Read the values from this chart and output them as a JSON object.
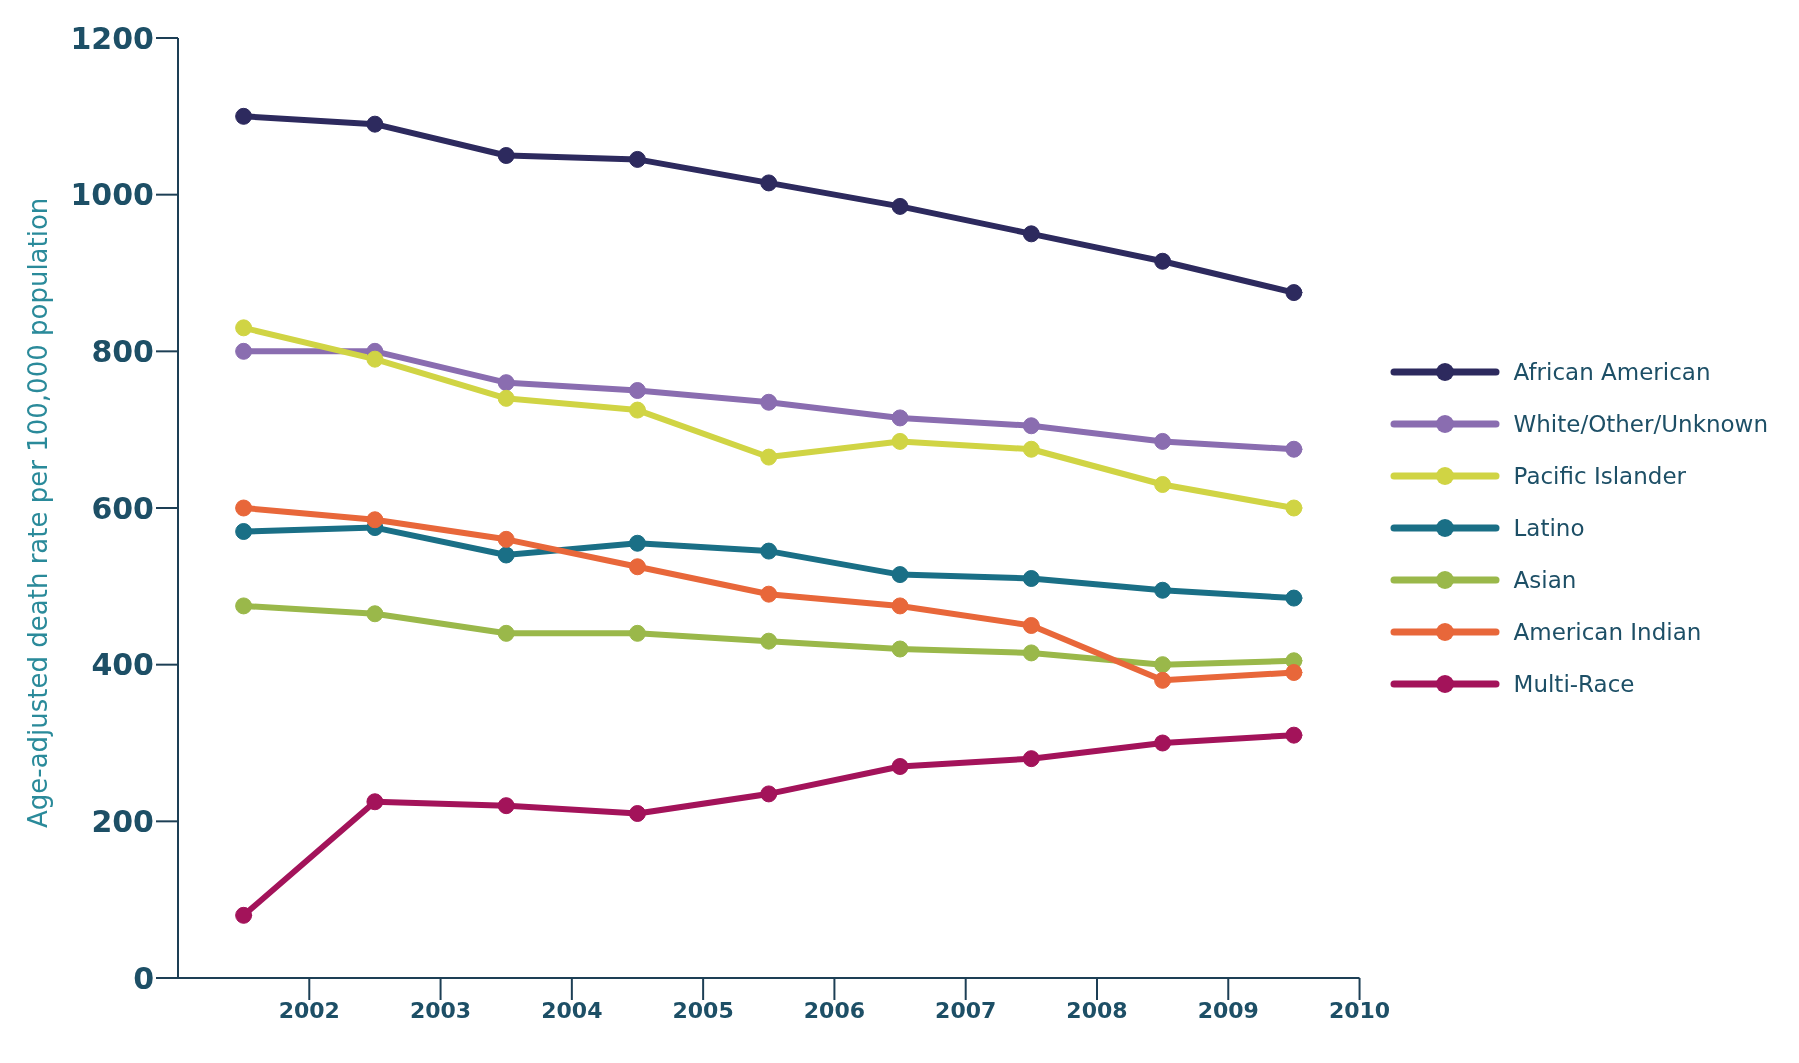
{
  "chart_data": {
    "type": "line",
    "ylabel": "Age-adjusted death rate per 100,000 population",
    "x": [
      2001.5,
      2002.5,
      2003.5,
      2004.5,
      2005.5,
      2006.5,
      2007.5,
      2008.5,
      2009.5
    ],
    "xlim": [
      2001,
      2010
    ],
    "xticks": [
      2002,
      2003,
      2004,
      2005,
      2006,
      2007,
      2008,
      2009,
      2010
    ],
    "ylim": [
      0,
      1200
    ],
    "yticks": [
      0,
      200,
      400,
      600,
      800,
      1000,
      1200
    ],
    "grid": false,
    "legend": "right",
    "marker": "circle",
    "line_style": "solid",
    "series": [
      {
        "name": "African American",
        "color": "#2d2a5e",
        "values": [
          1100,
          1090,
          1050,
          1045,
          1015,
          985,
          950,
          915,
          875
        ]
      },
      {
        "name": "White/Other/Unknown",
        "color": "#8a6db0",
        "values": [
          800,
          800,
          760,
          750,
          735,
          715,
          705,
          685,
          675
        ]
      },
      {
        "name": "Pacific Islander",
        "color": "#d0d444",
        "values": [
          830,
          790,
          740,
          725,
          665,
          685,
          675,
          630,
          600
        ]
      },
      {
        "name": "Latino",
        "color": "#1a6f86",
        "values": [
          570,
          575,
          540,
          555,
          545,
          515,
          510,
          495,
          485
        ]
      },
      {
        "name": "Asian",
        "color": "#9ab84a",
        "values": [
          475,
          465,
          440,
          440,
          430,
          420,
          415,
          400,
          405
        ]
      },
      {
        "name": "American Indian",
        "color": "#e8673a",
        "values": [
          600,
          585,
          560,
          525,
          490,
          475,
          450,
          380,
          390
        ]
      },
      {
        "name": "Multi-Race",
        "color": "#a3135a",
        "values": [
          80,
          225,
          220,
          210,
          235,
          270,
          280,
          300,
          310
        ]
      }
    ]
  }
}
